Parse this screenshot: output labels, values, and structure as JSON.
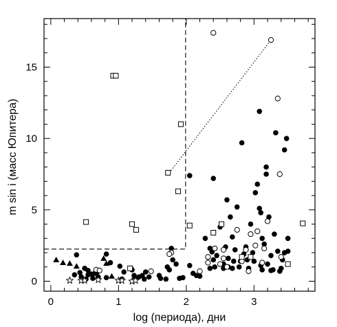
{
  "chart_data": {
    "type": "scatter",
    "xlabel": "log (периода), дни",
    "ylabel": "m sin i (масс Юпитера)",
    "xlim": [
      -0.1,
      3.9
    ],
    "ylim": [
      -0.7,
      18.4
    ],
    "x_ticks": [
      0,
      1,
      2,
      3
    ],
    "x_tick_labels": [
      "0",
      "1",
      "2",
      "3"
    ],
    "y_ticks": [
      0,
      5,
      10,
      15
    ],
    "y_tick_labels": [
      "0",
      "5",
      "10",
      "15"
    ],
    "boundary_lines": [
      {
        "style": "dashed",
        "x": [
          -0.1,
          1.99,
          1.99,
          1.99
        ],
        "y": [
          2.25,
          2.25,
          2.25,
          18.4
        ]
      },
      {
        "style": "dotted",
        "x": [
          1.75,
          3.25
        ],
        "y": [
          7.6,
          16.9
        ]
      }
    ],
    "series": [
      {
        "marker": "filled-circle",
        "points": [
          [
            0.38,
            1.85
          ],
          [
            0.5,
            0.9
          ],
          [
            0.55,
            0.45
          ],
          [
            0.6,
            0.5
          ],
          [
            0.65,
            0.55
          ],
          [
            0.7,
            0.3
          ],
          [
            0.45,
            0.3
          ],
          [
            0.55,
            0.75
          ],
          [
            0.68,
            0.6
          ],
          [
            0.82,
            1.9
          ],
          [
            0.82,
            0.25
          ],
          [
            0.52,
            0.15
          ],
          [
            0.62,
            0.2
          ],
          [
            0.35,
            0.45
          ],
          [
            0.43,
            0.6
          ],
          [
            0.88,
            1.3
          ],
          [
            1.02,
            1.05
          ],
          [
            1.05,
            0.15
          ],
          [
            1.08,
            0.65
          ],
          [
            1.2,
            0.8
          ],
          [
            1.23,
            0.4
          ],
          [
            1.25,
            0.2
          ],
          [
            1.3,
            0.3
          ],
          [
            1.35,
            0.4
          ],
          [
            1.38,
            0.15
          ],
          [
            1.4,
            0.65
          ],
          [
            1.45,
            0.3
          ],
          [
            1.6,
            0.4
          ],
          [
            1.62,
            0.2
          ],
          [
            1.7,
            0.15
          ],
          [
            1.72,
            1.0
          ],
          [
            1.75,
            0.8
          ],
          [
            1.78,
            2.3
          ],
          [
            1.8,
            1.5
          ],
          [
            1.85,
            1.2
          ],
          [
            1.9,
            0.2
          ],
          [
            1.95,
            0.25
          ],
          [
            2.05,
            7.4
          ],
          [
            2.05,
            1.1
          ],
          [
            2.1,
            0.55
          ],
          [
            2.15,
            0.4
          ],
          [
            2.2,
            0.35
          ],
          [
            2.28,
            3.0
          ],
          [
            2.35,
            2.3
          ],
          [
            2.38,
            2.05
          ],
          [
            2.4,
            7.2
          ],
          [
            2.42,
            1.0
          ],
          [
            2.45,
            1.8
          ],
          [
            2.5,
            3.8
          ],
          [
            2.55,
            1.2
          ],
          [
            2.58,
            2.4
          ],
          [
            2.6,
            5.7
          ],
          [
            2.62,
            1.0
          ],
          [
            2.65,
            4.5
          ],
          [
            2.7,
            1.4
          ],
          [
            2.72,
            2.2
          ],
          [
            2.75,
            5.2
          ],
          [
            2.78,
            1.0
          ],
          [
            2.8,
            1.4
          ],
          [
            2.82,
            9.7
          ],
          [
            2.85,
            1.9
          ],
          [
            2.88,
            2.4
          ],
          [
            2.9,
            1.5
          ],
          [
            2.92,
            0.9
          ],
          [
            2.95,
            4.0
          ],
          [
            2.98,
            2.0
          ],
          [
            3.0,
            1.4
          ],
          [
            3.02,
            6.2
          ],
          [
            3.05,
            6.8
          ],
          [
            3.08,
            5.1
          ],
          [
            3.08,
            11.9
          ],
          [
            3.1,
            4.8
          ],
          [
            3.1,
            1.1
          ],
          [
            3.12,
            0.8
          ],
          [
            3.12,
            3.0
          ],
          [
            3.15,
            2.6
          ],
          [
            3.18,
            7.5
          ],
          [
            3.18,
            8.0
          ],
          [
            3.2,
            1.2
          ],
          [
            3.22,
            4.5
          ],
          [
            3.25,
            1.8
          ],
          [
            3.28,
            0.8
          ],
          [
            3.3,
            3.3
          ],
          [
            3.32,
            10.4
          ],
          [
            3.35,
            2.1
          ],
          [
            3.38,
            0.7
          ],
          [
            3.4,
            0.9
          ],
          [
            3.45,
            9.2
          ],
          [
            3.45,
            2.0
          ],
          [
            3.48,
            10.0
          ],
          [
            3.5,
            2.1
          ],
          [
            3.5,
            3.0
          ],
          [
            2.35,
            0.9
          ],
          [
            2.55,
            0.9
          ],
          [
            2.62,
            1.6
          ],
          [
            2.68,
            0.9
          ],
          [
            2.4,
            1.5
          ],
          [
            2.68,
            3.1
          ],
          [
            3.25,
            0.75
          ],
          [
            3.42,
            1.5
          ]
        ]
      },
      {
        "marker": "open-circle",
        "points": [
          [
            0.67,
            0.8
          ],
          [
            0.72,
            0.75
          ],
          [
            1.18,
            0.9
          ],
          [
            1.48,
            0.7
          ],
          [
            1.78,
            2.0
          ],
          [
            1.75,
            1.9
          ],
          [
            2.2,
            0.7
          ],
          [
            2.32,
            1.7
          ],
          [
            2.4,
            17.4
          ],
          [
            2.42,
            2.3
          ],
          [
            2.5,
            1.2
          ],
          [
            2.55,
            1.6
          ],
          [
            2.6,
            1.0
          ],
          [
            2.75,
            3.6
          ],
          [
            2.82,
            1.4
          ],
          [
            2.88,
            2.2
          ],
          [
            2.92,
            0.7
          ],
          [
            2.95,
            3.3
          ],
          [
            3.02,
            2.5
          ],
          [
            3.05,
            3.5
          ],
          [
            3.12,
            1.3
          ],
          [
            3.15,
            2.3
          ],
          [
            3.2,
            4.2
          ],
          [
            3.25,
            16.9
          ],
          [
            3.35,
            12.8
          ],
          [
            3.38,
            7.5
          ],
          [
            3.4,
            1.7
          ],
          [
            2.32,
            1.3
          ],
          [
            2.55,
            2.2
          ]
        ]
      },
      {
        "marker": "open-square",
        "points": [
          [
            0.52,
            4.15
          ],
          [
            0.92,
            14.4
          ],
          [
            0.96,
            14.4
          ],
          [
            1.17,
            0.9
          ],
          [
            1.2,
            4.0
          ],
          [
            1.26,
            3.6
          ],
          [
            1.73,
            7.6
          ],
          [
            1.88,
            6.3
          ],
          [
            1.92,
            11.0
          ],
          [
            2.05,
            3.9
          ],
          [
            2.4,
            3.4
          ],
          [
            2.52,
            4.0
          ],
          [
            2.82,
            1.7
          ],
          [
            2.95,
            1.7
          ],
          [
            3.5,
            1.2
          ],
          [
            3.72,
            4.05
          ]
        ]
      },
      {
        "marker": "filled-triangle",
        "points": [
          [
            0.08,
            1.5
          ],
          [
            0.18,
            1.3
          ],
          [
            0.28,
            1.25
          ],
          [
            0.38,
            1.05
          ],
          [
            0.78,
            1.6
          ],
          [
            0.82,
            1.25
          ],
          [
            0.9,
            0.35
          ]
        ]
      },
      {
        "marker": "open-star",
        "points": [
          [
            0.28,
            0.05
          ],
          [
            0.45,
            0.05
          ],
          [
            0.5,
            0.05
          ],
          [
            0.7,
            0.1
          ],
          [
            1.0,
            0.05
          ],
          [
            1.05,
            0.05
          ],
          [
            1.2,
            0.0
          ],
          [
            1.25,
            0.05
          ]
        ]
      }
    ]
  }
}
